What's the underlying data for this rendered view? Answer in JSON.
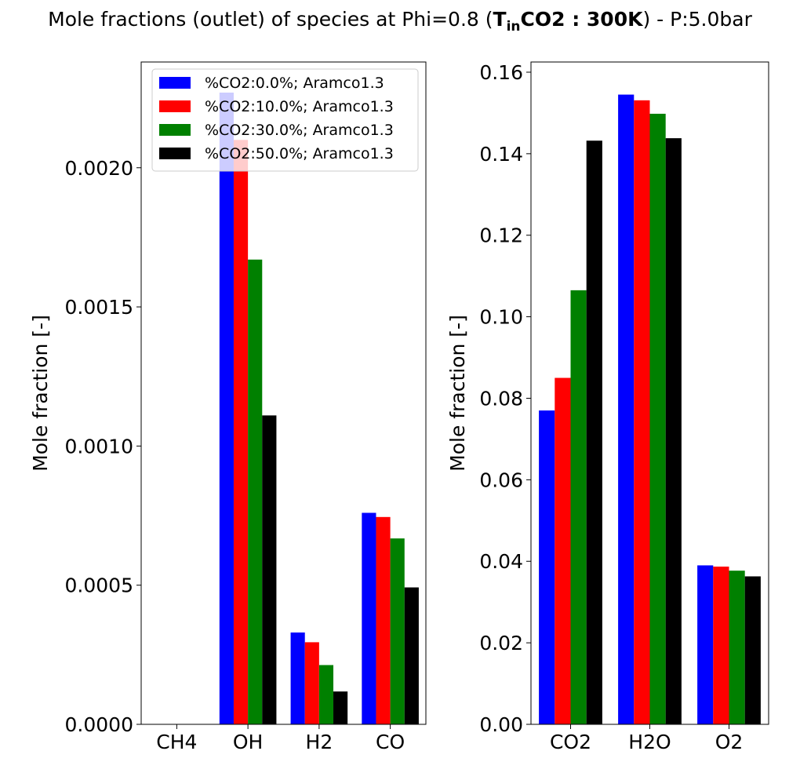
{
  "title": {
    "prefix": "Mole fractions (outlet) of species at Phi=0.8  (",
    "bold_main": "T",
    "bold_sub": "in",
    "bold_rest": "CO2 : 300K",
    "suffix": ") - P:5.0bar"
  },
  "legend": {
    "placement": "upper-right of left panel",
    "entries": [
      {
        "label": "%CO2:0.0%; Aramco1.3",
        "color": "#0000ff"
      },
      {
        "label": "%CO2:10.0%; Aramco1.3",
        "color": "#ff0000"
      },
      {
        "label": "%CO2:30.0%; Aramco1.3",
        "color": "#008000"
      },
      {
        "label": "%CO2:50.0%; Aramco1.3",
        "color": "#000000"
      }
    ]
  },
  "chart_data": [
    {
      "type": "bar",
      "categories": [
        "CH4",
        "OH",
        "H2",
        "CO"
      ],
      "ylabel": "Mole fraction [-]",
      "ylim": [
        0,
        0.00238
      ],
      "yticks": [
        "0.0000",
        "0.0005",
        "0.0010",
        "0.0015",
        "0.0020"
      ],
      "grid": false,
      "series": [
        {
          "name": "%CO2:0.0%; Aramco1.3",
          "color": "#0000ff",
          "values": [
            0.0,
            0.00227,
            0.00033,
            0.00076
          ]
        },
        {
          "name": "%CO2:10.0%; Aramco1.3",
          "color": "#ff0000",
          "values": [
            0.0,
            0.0021,
            0.000295,
            0.000745
          ]
        },
        {
          "name": "%CO2:30.0%; Aramco1.3",
          "color": "#008000",
          "values": [
            0.0,
            0.00167,
            0.000213,
            0.000668
          ]
        },
        {
          "name": "%CO2:50.0%; Aramco1.3",
          "color": "#000000",
          "values": [
            0.0,
            0.00111,
            0.000118,
            0.000492
          ]
        }
      ]
    },
    {
      "type": "bar",
      "categories": [
        "CO2",
        "H2O",
        "O2"
      ],
      "ylabel": "Mole fraction [-]",
      "ylim": [
        0,
        0.1625
      ],
      "yticks": [
        "0.00",
        "0.02",
        "0.04",
        "0.06",
        "0.08",
        "0.10",
        "0.12",
        "0.14",
        "0.16"
      ],
      "grid": false,
      "series": [
        {
          "name": "%CO2:0.0%; Aramco1.3",
          "color": "#0000ff",
          "values": [
            0.077,
            0.1545,
            0.039
          ]
        },
        {
          "name": "%CO2:10.0%; Aramco1.3",
          "color": "#ff0000",
          "values": [
            0.085,
            0.1531,
            0.0387
          ]
        },
        {
          "name": "%CO2:30.0%; Aramco1.3",
          "color": "#008000",
          "values": [
            0.1065,
            0.1498,
            0.0377
          ]
        },
        {
          "name": "%CO2:50.0%; Aramco1.3",
          "color": "#000000",
          "values": [
            0.1432,
            0.1438,
            0.0363
          ]
        }
      ]
    }
  ]
}
